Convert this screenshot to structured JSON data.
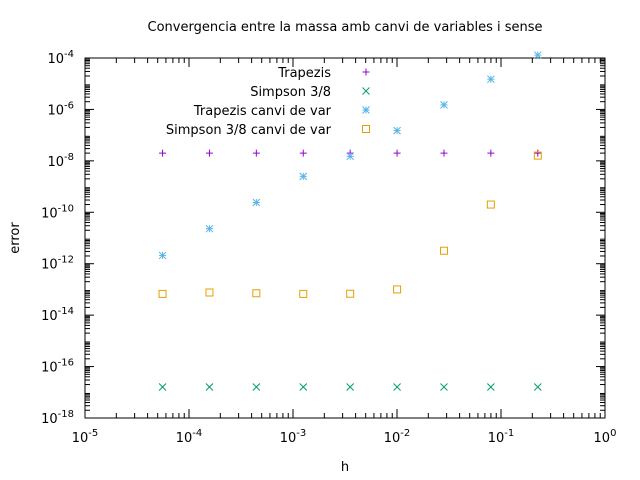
{
  "chart_data": {
    "type": "scatter",
    "title": "Convergencia entre la massa amb canvi de variables i sense",
    "xlabel": "h",
    "ylabel": "error",
    "x_scale": "log",
    "y_scale": "log",
    "xlim": [
      1e-05,
      1
    ],
    "ylim": [
      1e-18,
      0.0001
    ],
    "x_ticks": [
      {
        "value": 1e-05,
        "base": "10",
        "exp": "-5"
      },
      {
        "value": 0.0001,
        "base": "10",
        "exp": "-4"
      },
      {
        "value": 0.001,
        "base": "10",
        "exp": "-3"
      },
      {
        "value": 0.01,
        "base": "10",
        "exp": "-2"
      },
      {
        "value": 0.1,
        "base": "10",
        "exp": "-1"
      },
      {
        "value": 1,
        "base": "10",
        "exp": "0"
      }
    ],
    "y_ticks": [
      {
        "value": 1e-18,
        "base": "10",
        "exp": "-18"
      },
      {
        "value": 1e-16,
        "base": "10",
        "exp": "-16"
      },
      {
        "value": 1e-14,
        "base": "10",
        "exp": "-14"
      },
      {
        "value": 1e-12,
        "base": "10",
        "exp": "-12"
      },
      {
        "value": 1e-10,
        "base": "10",
        "exp": "-10"
      },
      {
        "value": 1e-08,
        "base": "10",
        "exp": "-8"
      },
      {
        "value": 1e-06,
        "base": "10",
        "exp": "-6"
      },
      {
        "value": 0.0001,
        "base": "10",
        "exp": "-4"
      }
    ],
    "grid": false,
    "legend_position": "top-right",
    "x": [
      5.57e-05,
      0.0001573,
      0.000444,
      0.001255,
      0.003546,
      0.01002,
      0.02829,
      0.0799,
      0.2259
    ],
    "series": [
      {
        "name": "Trapezis",
        "marker": "plus",
        "color": "#9400d3",
        "values": [
          2e-08,
          2e-08,
          2e-08,
          2e-08,
          2e-08,
          2e-08,
          2e-08,
          2e-08,
          2e-08
        ]
      },
      {
        "name": "Simpson 3/8",
        "marker": "cross",
        "color": "#009e73",
        "values": [
          1.6e-17,
          1.6e-17,
          1.6e-17,
          1.6e-17,
          1.6e-17,
          1.6e-17,
          1.6e-17,
          1.6e-17,
          1.6e-17
        ]
      },
      {
        "name": "Trapezis canvi de var",
        "marker": "star",
        "color": "#56b4e9",
        "values": [
          2.1e-12,
          2.3e-11,
          2.4e-10,
          2.5e-09,
          1.5e-08,
          1.5e-07,
          1.5e-06,
          1.5e-05,
          0.00013
        ]
      },
      {
        "name": "Simpson 3/8 canvi de var",
        "marker": "square",
        "color": "#e69f00",
        "values": [
          6.7e-14,
          7.6e-14,
          7.1e-14,
          6.7e-14,
          6.8e-14,
          1e-13,
          3.2e-12,
          2e-10,
          1.6e-08
        ]
      }
    ]
  }
}
